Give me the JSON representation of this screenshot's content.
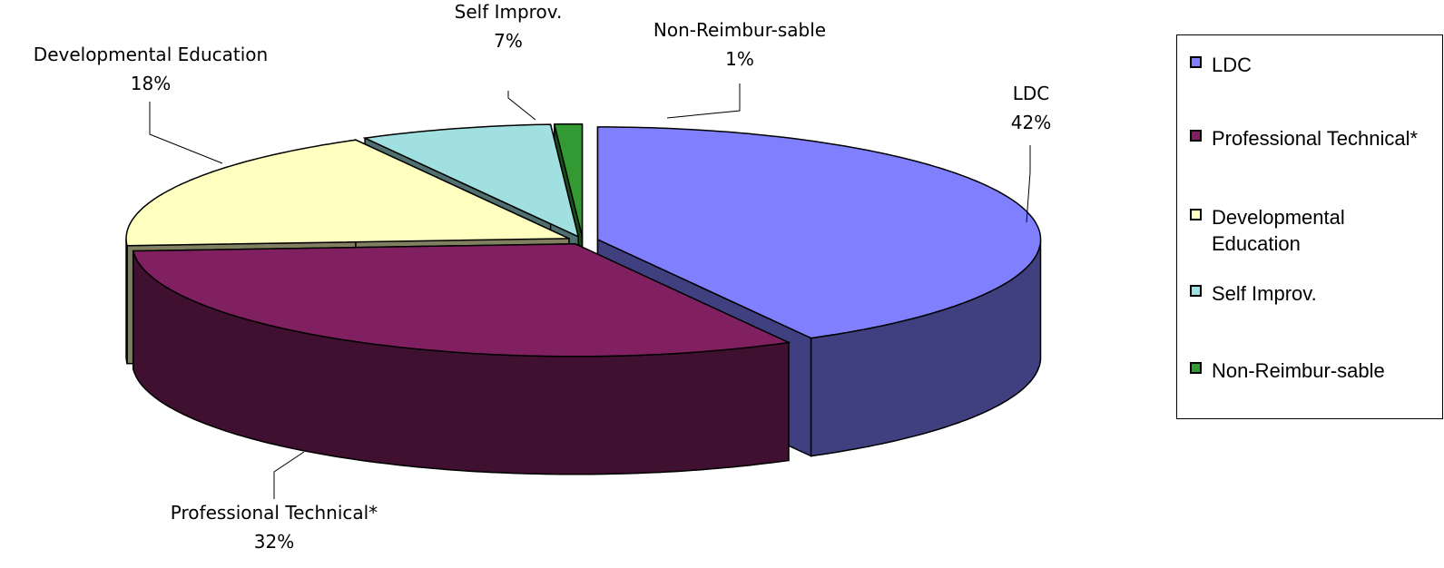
{
  "chart_data": {
    "type": "pie3d",
    "categories": [
      "LDC",
      "Professional Technical*",
      "Developmental Education",
      "Self Improv.",
      "Non-Reimbur-sable"
    ],
    "values": [
      42,
      32,
      18,
      7,
      1
    ],
    "value_labels": [
      "42%",
      "32%",
      "18%",
      "7%",
      "1%"
    ],
    "colors": [
      "#8080ff",
      "#802060",
      "#ffffc0",
      "#a0e0e0",
      "#339933"
    ],
    "legend": "right"
  }
}
